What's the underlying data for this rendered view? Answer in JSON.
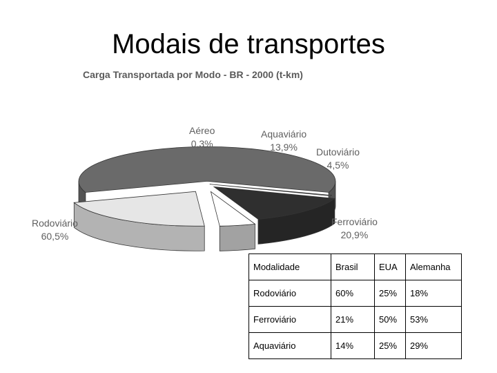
{
  "slide": {
    "title": "Modais de transportes"
  },
  "chart_data": {
    "type": "pie",
    "title": "Carga Transportada por Modo - BR - 2000 (t-km)",
    "slices": [
      {
        "name": "Rodoviário",
        "label": "60,5%",
        "value": 60.5,
        "color": "#6a6a6a"
      },
      {
        "name": "Aéreo",
        "label": "0,3%",
        "value": 0.3,
        "color": "#dcdcdc"
      },
      {
        "name": "Aquaviário",
        "label": "13,9%",
        "value": 13.9,
        "color": "#2f2f2f"
      },
      {
        "name": "Dutoviário",
        "label": "4,5%",
        "value": 4.5,
        "color": "#ffffff"
      },
      {
        "name": "Ferroviário",
        "label": "20,9%",
        "value": 20.9,
        "color": "#e6e6e6"
      }
    ],
    "legend": "none"
  },
  "table": {
    "headers": [
      "Modalidade",
      "Brasil",
      "EUA",
      "Alemanha"
    ],
    "rows": [
      [
        "Rodoviário",
        "60%",
        "25%",
        "18%"
      ],
      [
        "Ferroviário",
        "21%",
        "50%",
        "53%"
      ],
      [
        "Aquaviário",
        "14%",
        "25%",
        "29%"
      ]
    ]
  }
}
